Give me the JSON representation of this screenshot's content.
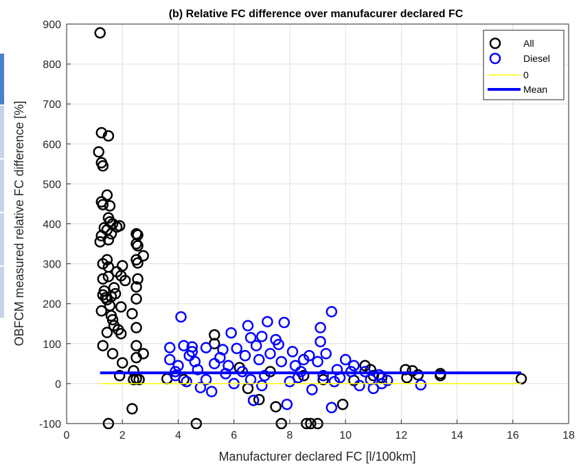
{
  "chart_data": {
    "type": "scatter",
    "title": "(b) Relative FC difference over manufacurer declared FC",
    "xlabel": "Manufacturer declared FC [l/100km]",
    "ylabel": "OBFCM measured relative FC difference [%]",
    "xlim": [
      0,
      18
    ],
    "ylim": [
      -100,
      900
    ],
    "x_ticks": [
      "0",
      "2",
      "4",
      "6",
      "8",
      "10",
      "12",
      "14",
      "16",
      "18"
    ],
    "y_ticks": [
      "-100",
      "0",
      "100",
      "200",
      "300",
      "400",
      "500",
      "600",
      "700",
      "800",
      "900"
    ],
    "grid": true,
    "legend_position": "top-right",
    "colors": {
      "all": "#000000",
      "diesel": "#0000ff",
      "zero": "#ffff00",
      "mean": "#0000ff"
    },
    "series": [
      {
        "name": "All",
        "marker": "circle",
        "points": [
          [
            1.2,
            878
          ],
          [
            1.25,
            628
          ],
          [
            1.5,
            620
          ],
          [
            1.15,
            580
          ],
          [
            1.25,
            553
          ],
          [
            1.3,
            545
          ],
          [
            1.45,
            472
          ],
          [
            1.25,
            455
          ],
          [
            1.3,
            448
          ],
          [
            1.55,
            445
          ],
          [
            1.5,
            415
          ],
          [
            1.55,
            405
          ],
          [
            1.65,
            400
          ],
          [
            1.9,
            395
          ],
          [
            1.8,
            392
          ],
          [
            1.35,
            390
          ],
          [
            1.45,
            385
          ],
          [
            1.6,
            375
          ],
          [
            1.25,
            370
          ],
          [
            1.2,
            355
          ],
          [
            1.5,
            360
          ],
          [
            2.5,
            375
          ],
          [
            2.55,
            372
          ],
          [
            2.5,
            350
          ],
          [
            2.55,
            345
          ],
          [
            2.75,
            320
          ],
          [
            2.5,
            310
          ],
          [
            2.55,
            302
          ],
          [
            1.45,
            310
          ],
          [
            1.3,
            300
          ],
          [
            1.5,
            292
          ],
          [
            2.0,
            295
          ],
          [
            1.8,
            280
          ],
          [
            1.95,
            270
          ],
          [
            1.5,
            268
          ],
          [
            1.3,
            262
          ],
          [
            2.55,
            262
          ],
          [
            2.1,
            258
          ],
          [
            2.5,
            242
          ],
          [
            1.7,
            240
          ],
          [
            1.35,
            232
          ],
          [
            1.3,
            222
          ],
          [
            1.4,
            215
          ],
          [
            1.6,
            218
          ],
          [
            1.75,
            225
          ],
          [
            1.45,
            210
          ],
          [
            2.5,
            212
          ],
          [
            1.55,
            195
          ],
          [
            1.95,
            192
          ],
          [
            1.25,
            182
          ],
          [
            2.35,
            175
          ],
          [
            1.6,
            170
          ],
          [
            1.65,
            160
          ],
          [
            1.7,
            145
          ],
          [
            2.5,
            140
          ],
          [
            1.85,
            135
          ],
          [
            1.45,
            128
          ],
          [
            1.95,
            125
          ],
          [
            1.3,
            95
          ],
          [
            2.5,
            95
          ],
          [
            1.65,
            75
          ],
          [
            2.75,
            75
          ],
          [
            2.5,
            65
          ],
          [
            2.0,
            52
          ],
          [
            2.4,
            32
          ],
          [
            1.9,
            20
          ],
          [
            2.5,
            12
          ],
          [
            2.6,
            10
          ],
          [
            2.4,
            10
          ],
          [
            1.5,
            -100
          ],
          [
            2.35,
            -63
          ],
          [
            3.6,
            12
          ],
          [
            4.2,
            10
          ],
          [
            5.3,
            122
          ],
          [
            5.3,
            100
          ],
          [
            6.5,
            -12
          ],
          [
            6.7,
            -42
          ],
          [
            6.9,
            -40
          ],
          [
            4.65,
            -100
          ],
          [
            7.5,
            -58
          ],
          [
            7.7,
            -100
          ],
          [
            8.6,
            -100
          ],
          [
            8.75,
            -100
          ],
          [
            9.0,
            -100
          ],
          [
            9.9,
            -52
          ],
          [
            10.7,
            45
          ],
          [
            10.9,
            35
          ],
          [
            11.0,
            20
          ],
          [
            11.3,
            15
          ],
          [
            12.15,
            35
          ],
          [
            12.4,
            32
          ],
          [
            12.6,
            22
          ],
          [
            12.2,
            15
          ],
          [
            13.4,
            25
          ],
          [
            13.4,
            20
          ],
          [
            16.3,
            12
          ],
          [
            8.5,
            20
          ],
          [
            9.2,
            10
          ],
          [
            10.3,
            8
          ],
          [
            7.3,
            30
          ],
          [
            6.2,
            40
          ]
        ]
      },
      {
        "name": "Diesel",
        "marker": "circle",
        "points": [
          [
            4.1,
            167
          ],
          [
            9.5,
            180
          ],
          [
            7.2,
            155
          ],
          [
            7.8,
            153
          ],
          [
            6.5,
            145
          ],
          [
            9.1,
            140
          ],
          [
            5.9,
            127
          ],
          [
            6.6,
            115
          ],
          [
            7.0,
            118
          ],
          [
            7.5,
            110
          ],
          [
            9.1,
            105
          ],
          [
            3.7,
            90
          ],
          [
            4.2,
            95
          ],
          [
            4.5,
            92
          ],
          [
            5.0,
            90
          ],
          [
            5.6,
            85
          ],
          [
            6.1,
            88
          ],
          [
            6.8,
            95
          ],
          [
            7.6,
            98
          ],
          [
            8.1,
            80
          ],
          [
            8.7,
            70
          ],
          [
            9.3,
            75
          ],
          [
            9.0,
            55
          ],
          [
            10.0,
            60
          ],
          [
            10.3,
            45
          ],
          [
            10.7,
            30
          ],
          [
            11.2,
            22
          ],
          [
            11.5,
            8
          ],
          [
            12.7,
            -3
          ],
          [
            9.5,
            -60
          ],
          [
            7.9,
            -52
          ],
          [
            6.7,
            -42
          ],
          [
            5.2,
            -20
          ],
          [
            4.8,
            -10
          ],
          [
            4.3,
            5
          ],
          [
            3.9,
            30
          ],
          [
            3.7,
            60
          ],
          [
            4.0,
            45
          ],
          [
            4.4,
            70
          ],
          [
            4.6,
            55
          ],
          [
            5.5,
            65
          ],
          [
            6.3,
            30
          ],
          [
            7.1,
            20
          ],
          [
            8.4,
            30
          ],
          [
            9.8,
            15
          ],
          [
            10.5,
            -5
          ],
          [
            11.0,
            -12
          ],
          [
            3.9,
            20
          ],
          [
            4.7,
            35
          ],
          [
            5.8,
            45
          ],
          [
            6.9,
            60
          ],
          [
            7.3,
            75
          ],
          [
            8.2,
            45
          ],
          [
            9.7,
            35
          ],
          [
            10.9,
            10
          ],
          [
            5.0,
            10
          ],
          [
            6.0,
            0
          ],
          [
            7.0,
            -5
          ],
          [
            8.0,
            5
          ],
          [
            8.8,
            -15
          ],
          [
            9.2,
            20
          ],
          [
            4.5,
            80
          ],
          [
            5.3,
            50
          ],
          [
            6.4,
            70
          ],
          [
            7.7,
            55
          ],
          [
            8.5,
            60
          ],
          [
            10.2,
            30
          ],
          [
            11.3,
            0
          ],
          [
            5.7,
            25
          ],
          [
            6.6,
            10
          ],
          [
            8.3,
            15
          ],
          [
            9.6,
            5
          ]
        ]
      },
      {
        "name": "0",
        "line": true,
        "points": [
          [
            1.2,
            0
          ],
          [
            16.3,
            0
          ]
        ]
      },
      {
        "name": "Mean",
        "line": true,
        "points": [
          [
            1.2,
            27
          ],
          [
            16.3,
            27
          ]
        ]
      }
    ]
  }
}
